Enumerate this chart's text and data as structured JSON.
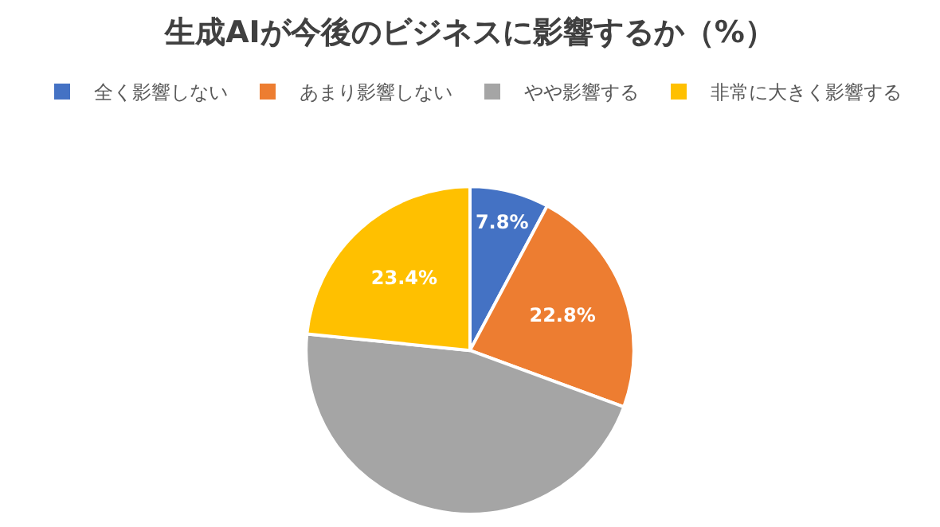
{
  "chart_data": {
    "type": "pie",
    "title": "生成AIが今後のビジネスに影響するか（%）",
    "categories": [
      "全く影響しない",
      "あまり影響しない",
      "やや影響する",
      "非常に大きく影響する"
    ],
    "values": [
      7.8,
      22.8,
      46.0,
      23.4
    ],
    "colors": [
      "#4472c4",
      "#ed7d31",
      "#a5a5a5",
      "#ffc000"
    ],
    "value_labels": [
      "7.8%",
      "22.8%",
      null,
      "23.4%"
    ],
    "legend": "top"
  }
}
